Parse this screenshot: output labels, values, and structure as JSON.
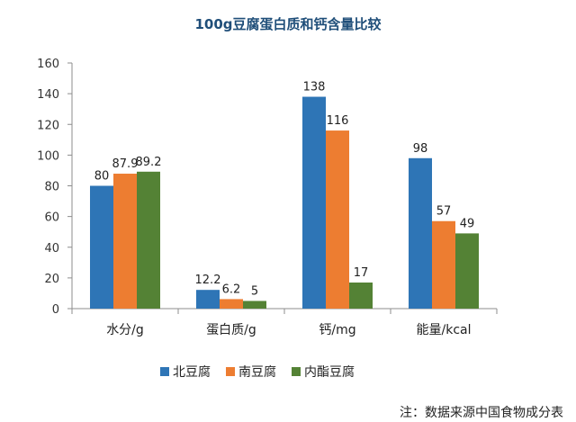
{
  "chart_data": {
    "type": "bar",
    "title": "100g豆腐蛋白质和钙含量比较",
    "categories": [
      "水分/g",
      "蛋白质/g",
      "钙/mg",
      "能量/kcal"
    ],
    "series": [
      {
        "name": "北豆腐",
        "values": [
          80,
          12.2,
          138,
          98
        ],
        "labels": [
          "80",
          "12.2",
          "138",
          "98"
        ],
        "color": "#2e75b6"
      },
      {
        "name": "南豆腐",
        "values": [
          87.9,
          6.2,
          116,
          57
        ],
        "labels": [
          "87.9",
          "6.2",
          "116",
          "57"
        ],
        "color": "#ed7d31"
      },
      {
        "name": "内酯豆腐",
        "values": [
          89.2,
          5,
          17,
          49
        ],
        "labels": [
          "89.2",
          "5",
          "17",
          "49"
        ],
        "color": "#548235"
      }
    ],
    "ylim": [
      0,
      160
    ],
    "yticks": [
      0,
      20,
      40,
      60,
      80,
      100,
      120,
      140,
      160
    ],
    "grid": false,
    "legend_position": "bottom-left",
    "xlabel": "",
    "ylabel": ""
  },
  "note": "注：数据来源中国食物成分表"
}
